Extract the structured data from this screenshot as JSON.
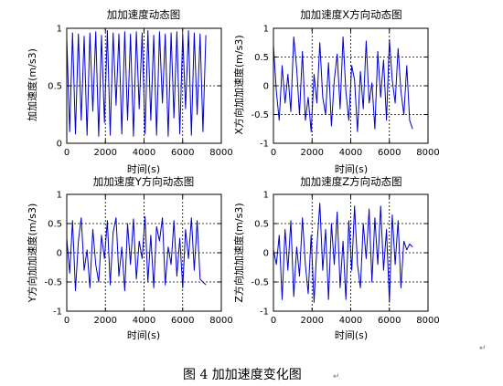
{
  "caption": "图 4  加加速度变化图",
  "caption_mark": "↵",
  "page_mark": "↵",
  "colors": {
    "series": "#0000cc",
    "axes": "#000000",
    "grid": "#000000"
  },
  "chart_data": [
    {
      "type": "line",
      "title": "加加速度动态图",
      "xlabel": "时间(s)",
      "ylabel": "加加速度(m/s3)",
      "xlim": [
        0,
        8000
      ],
      "ylim": [
        0,
        1
      ],
      "xticks": [
        0,
        2000,
        4000,
        6000,
        8000
      ],
      "yticks": [
        0,
        0.5,
        1
      ],
      "ytick_labels": [
        "0",
        "0.5",
        "1"
      ],
      "grid": true,
      "series": [
        {
          "x": [
            0,
            150,
            300,
            450,
            600,
            750,
            900,
            1050,
            1200,
            1350,
            1500,
            1650,
            1800,
            1950,
            2100,
            2250,
            2400,
            2550,
            2700,
            2850,
            3000,
            3150,
            3300,
            3450,
            3600,
            3750,
            3900,
            4050,
            4200,
            4350,
            4500,
            4650,
            4800,
            4950,
            5100,
            5250,
            5400,
            5550,
            5700,
            5850,
            6000,
            6150,
            6300,
            6450,
            6600,
            6750,
            6900,
            7050,
            7200
          ],
          "y": [
            0.92,
            0.1,
            0.96,
            0.08,
            0.95,
            0.2,
            0.93,
            0.07,
            0.96,
            0.28,
            0.97,
            0.06,
            0.94,
            0.18,
            0.98,
            0.07,
            0.96,
            0.33,
            0.95,
            0.08,
            0.97,
            0.2,
            0.95,
            0.06,
            0.97,
            0.3,
            0.96,
            0.08,
            0.98,
            0.2,
            0.94,
            0.07,
            0.97,
            0.35,
            0.95,
            0.06,
            0.96,
            0.22,
            0.97,
            0.08,
            0.95,
            0.3,
            0.98,
            0.07,
            0.96,
            0.25,
            0.95,
            0.1,
            0.94
          ]
        }
      ]
    },
    {
      "type": "line",
      "title": "加加速度X方向动态图",
      "xlabel": "时间(s)",
      "ylabel": "X方向加加速度(m/s3)",
      "xlim": [
        0,
        8000
      ],
      "ylim": [
        -1,
        1
      ],
      "xticks": [
        0,
        2000,
        4000,
        6000,
        8000
      ],
      "yticks": [
        -1,
        -0.5,
        0,
        0.5,
        1
      ],
      "ytick_labels": [
        "-1",
        "-0.5",
        "0",
        "0.5",
        "1"
      ],
      "grid": true,
      "series": [
        {
          "x": [
            0,
            150,
            300,
            450,
            600,
            750,
            900,
            1050,
            1200,
            1350,
            1500,
            1650,
            1800,
            1950,
            2100,
            2250,
            2400,
            2550,
            2700,
            2850,
            3000,
            3150,
            3300,
            3450,
            3600,
            3750,
            3900,
            4050,
            4200,
            4350,
            4500,
            4650,
            4800,
            4950,
            5100,
            5250,
            5400,
            5550,
            5700,
            5850,
            6000,
            6150,
            6300,
            6450,
            6600,
            6750,
            6900,
            7050,
            7200
          ],
          "y": [
            0.7,
            -0.1,
            -0.6,
            0.35,
            -0.3,
            0.2,
            -0.45,
            0.85,
            0.3,
            -0.5,
            0.6,
            -0.6,
            -0.2,
            -0.8,
            0.2,
            -0.3,
            0.75,
            -0.2,
            -0.5,
            0.4,
            -0.7,
            0.1,
            0.55,
            -0.4,
            0.85,
            -0.1,
            -0.6,
            0.35,
            0.1,
            -0.8,
            0.25,
            -0.4,
            0.78,
            -0.3,
            0.05,
            -0.75,
            0.6,
            -0.2,
            0.45,
            -0.6,
            0.8,
            0.1,
            -0.3,
            0.65,
            -0.1,
            -0.5,
            0.35,
            -0.6,
            -0.75
          ]
        }
      ]
    },
    {
      "type": "line",
      "title": "加加速度Y方向动态图",
      "xlabel": "时间(s)",
      "ylabel": "Y方向加加速度(m/s3)",
      "xlim": [
        0,
        8000
      ],
      "ylim": [
        -1,
        1
      ],
      "xticks": [
        0,
        2000,
        4000,
        6000,
        8000
      ],
      "yticks": [
        -1,
        -0.5,
        0,
        0.5,
        1
      ],
      "ytick_labels": [
        "-1",
        "-0.5",
        "0",
        "0.5",
        "1"
      ],
      "grid": true,
      "series": [
        {
          "x": [
            0,
            150,
            300,
            450,
            600,
            750,
            900,
            1050,
            1200,
            1350,
            1500,
            1650,
            1800,
            1950,
            2100,
            2250,
            2400,
            2550,
            2700,
            2850,
            3000,
            3150,
            3300,
            3450,
            3600,
            3750,
            3900,
            4050,
            4200,
            4350,
            4500,
            4650,
            4800,
            4950,
            5100,
            5250,
            5400,
            5550,
            5700,
            5850,
            6000,
            6150,
            6300,
            6450,
            6600,
            6750,
            6900,
            7050,
            7200
          ],
          "y": [
            0.25,
            -0.35,
            0.55,
            -0.65,
            0.2,
            0.6,
            -0.3,
            0.05,
            -0.6,
            0.4,
            -0.2,
            -0.5,
            0.3,
            -0.1,
            0.55,
            -0.55,
            0.35,
            0.6,
            -0.4,
            0.1,
            -0.65,
            0.5,
            -0.2,
            0.58,
            -0.45,
            0.2,
            -0.1,
            0.62,
            -0.5,
            0.3,
            -0.6,
            0.45,
            0.2,
            0.6,
            -0.55,
            0.1,
            -0.2,
            0.55,
            -0.4,
            0.25,
            -0.6,
            0.4,
            -0.1,
            0.6,
            -0.3,
            0.55,
            -0.45,
            -0.5,
            -0.55
          ]
        }
      ]
    },
    {
      "type": "line",
      "title": "加加速度Z方向动态图",
      "xlabel": "时间(s)",
      "ylabel": "Z方向加加速度(m/s3)",
      "xlim": [
        0,
        8000
      ],
      "ylim": [
        -1,
        1
      ],
      "xticks": [
        0,
        2000,
        4000,
        6000,
        8000
      ],
      "yticks": [
        -1,
        -0.5,
        0,
        0.5,
        1
      ],
      "ytick_labels": [
        "-1",
        "-0.5",
        "0",
        "0.5",
        "1"
      ],
      "grid": true,
      "series": [
        {
          "x": [
            0,
            150,
            300,
            450,
            600,
            750,
            900,
            1050,
            1200,
            1350,
            1500,
            1650,
            1800,
            1950,
            2100,
            2250,
            2400,
            2550,
            2700,
            2850,
            3000,
            3150,
            3300,
            3450,
            3600,
            3750,
            3900,
            4050,
            4200,
            4350,
            4500,
            4650,
            4800,
            4950,
            5100,
            5250,
            5400,
            5550,
            5700,
            5850,
            6000,
            6150,
            6300,
            6450,
            6600,
            6750,
            6900,
            7050,
            7200
          ],
          "y": [
            0.05,
            -0.2,
            0.3,
            -0.8,
            0.4,
            -0.3,
            0.55,
            -0.75,
            0.1,
            -0.4,
            0.6,
            -0.2,
            -0.7,
            0.3,
            -0.85,
            0.1,
            0.85,
            -0.3,
            0.4,
            -0.8,
            0.5,
            -0.2,
            0.7,
            -0.6,
            0.2,
            -0.8,
            0.55,
            -0.3,
            0.8,
            -0.2,
            -0.6,
            0.5,
            -0.1,
            0.75,
            -0.5,
            0.6,
            -0.2,
            0.8,
            -0.3,
            0.4,
            -0.85,
            0.65,
            -0.2,
            0.55,
            -0.6,
            0.2,
            0.05,
            0.15,
            0.1
          ]
        }
      ]
    }
  ]
}
